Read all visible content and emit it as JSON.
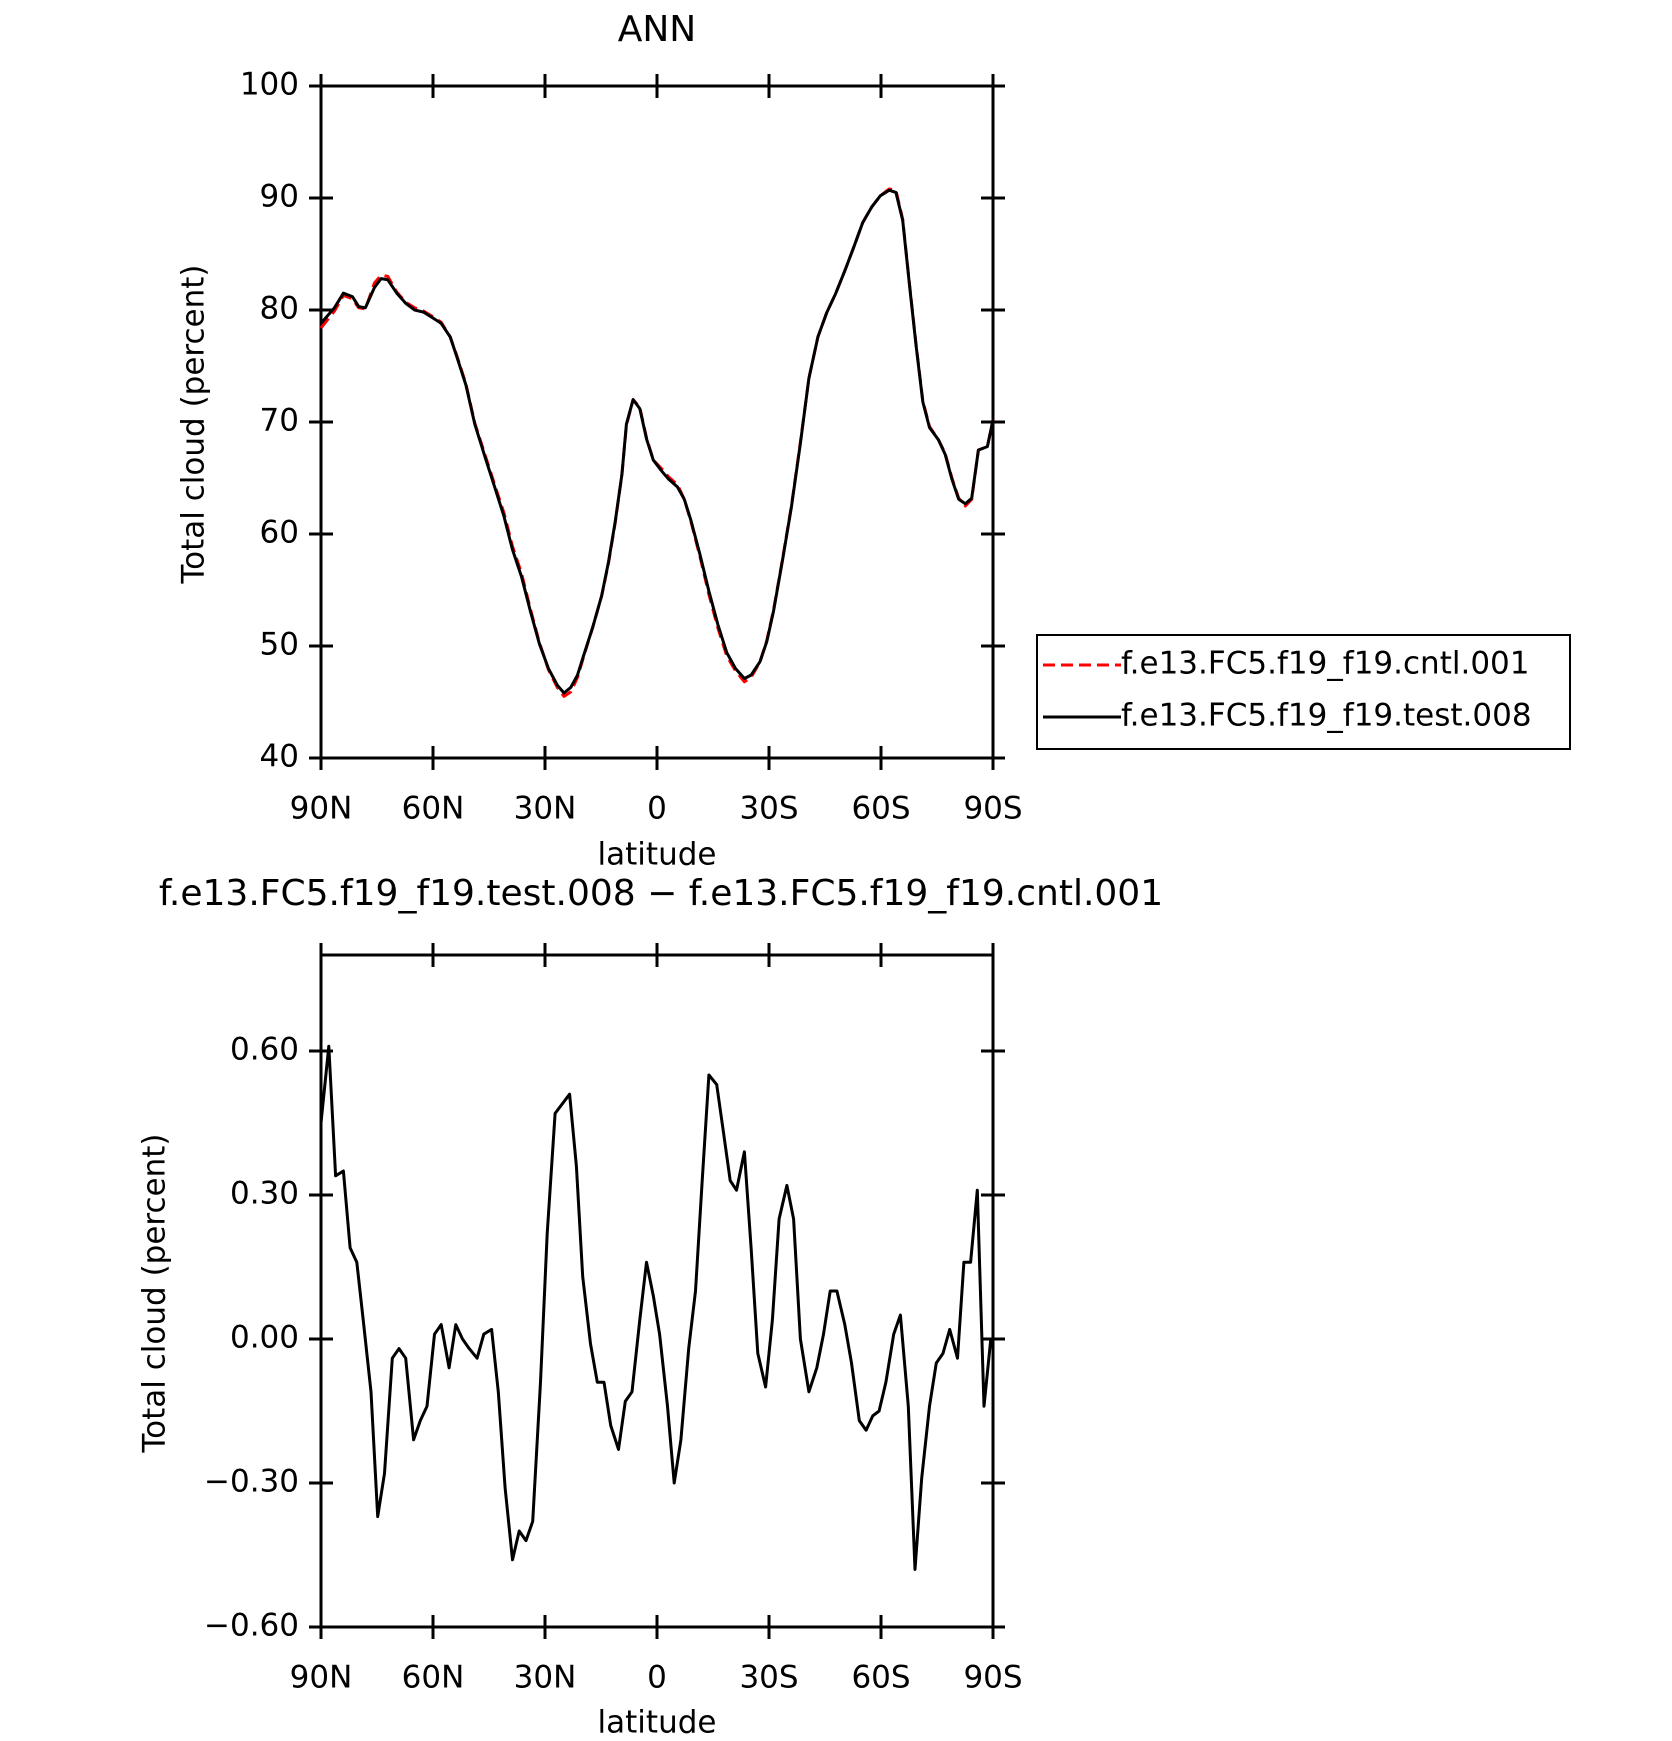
{
  "chart_data": [
    {
      "type": "line",
      "title": "ANN",
      "xlabel": "latitude",
      "ylabel": "Total cloud (percent)",
      "xlim": [
        90,
        -90
      ],
      "xticks": [
        {
          "value": 90,
          "label": "90N"
        },
        {
          "value": 60,
          "label": "60N"
        },
        {
          "value": 30,
          "label": "30N"
        },
        0,
        {
          "value": -30,
          "label": "30S"
        },
        {
          "value": -60,
          "label": "60S"
        },
        {
          "value": -90,
          "label": "90S"
        }
      ],
      "ylim": [
        40,
        100
      ],
      "yticks": [
        40,
        50,
        60,
        70,
        80,
        90,
        100
      ],
      "legend": "right",
      "x": [
        90,
        86.4,
        84.0,
        81.6,
        79.9,
        78.1,
        75.7,
        73.9,
        72.1,
        69.7,
        67.3,
        64.9,
        62.5,
        59.6,
        57.8,
        55.4,
        53.6,
        51.2,
        48.8,
        45.8,
        43.4,
        41.0,
        38.7,
        36.3,
        33.9,
        31.5,
        29.1,
        26.7,
        24.9,
        23.1,
        21.3,
        19.6,
        17.2,
        14.8,
        13.0,
        11.2,
        9.4,
        8.2,
        6.4,
        4.6,
        2.8,
        1.0,
        -1.3,
        -3.1,
        -5.5,
        -7.3,
        -9.1,
        -11.5,
        -13.9,
        -16.3,
        -18.7,
        -21.0,
        -23.4,
        -25.2,
        -27.6,
        -29.4,
        -31.2,
        -33.6,
        -36.0,
        -38.4,
        -40.7,
        -43.1,
        -45.5,
        -47.9,
        -50.3,
        -52.7,
        -55.1,
        -57.5,
        -59.8,
        -62.2,
        -64.0,
        -65.8,
        -67.6,
        -69.4,
        -71.2,
        -73.0,
        -75.4,
        -77.2,
        -79.0,
        -80.8,
        -82.6,
        -84.3,
        -86.1,
        -88.5,
        -90
      ],
      "series": [
        {
          "name": "f.e13.FC5.f19_f19.cntl.001",
          "color": "#ff0000",
          "dash": true,
          "values": [
            78.4,
            79.9,
            81.3,
            81.0,
            80.2,
            80.1,
            82.4,
            83.1,
            83.0,
            81.6,
            80.7,
            80.2,
            79.9,
            79.3,
            78.9,
            77.6,
            75.9,
            73.4,
            69.9,
            66.8,
            64.3,
            61.9,
            58.9,
            56.5,
            53.3,
            50.3,
            47.9,
            46.3,
            45.5,
            45.9,
            47.2,
            49.1,
            51.7,
            54.5,
            57.4,
            61.0,
            65.3,
            69.7,
            72.0,
            71.3,
            68.6,
            66.6,
            65.8,
            65.1,
            64.4,
            63.1,
            61.1,
            58.0,
            54.6,
            51.6,
            49.1,
            47.8,
            46.8,
            47.2,
            48.6,
            50.5,
            53.2,
            57.7,
            62.5,
            68.2,
            73.9,
            77.6,
            79.8,
            81.5,
            83.5,
            85.6,
            87.8,
            89.2,
            90.2,
            90.8,
            90.7,
            88.1,
            82.4,
            76.9,
            71.9,
            69.6,
            68.4,
            67.2,
            65.0,
            63.2,
            62.5,
            63.1,
            67.5,
            67.8,
            70.2
          ]
        },
        {
          "name": "f.e13.FC5.f19_f19.test.008",
          "color": "#000000",
          "dash": false,
          "values": [
            78.8,
            80.2,
            81.5,
            81.2,
            80.3,
            80.2,
            82.0,
            82.8,
            82.7,
            81.5,
            80.6,
            80.0,
            79.8,
            79.2,
            78.8,
            77.6,
            75.8,
            73.3,
            69.8,
            66.6,
            64.1,
            61.6,
            58.6,
            56.2,
            53.1,
            50.2,
            48.0,
            46.5,
            45.8,
            46.3,
            47.4,
            49.2,
            51.7,
            54.5,
            57.5,
            61.1,
            65.3,
            69.8,
            72.0,
            71.2,
            68.5,
            66.6,
            65.6,
            64.9,
            64.2,
            63.1,
            61.2,
            58.2,
            54.9,
            51.9,
            49.4,
            48.0,
            47.1,
            47.4,
            48.6,
            50.4,
            53.1,
            57.6,
            62.4,
            68.1,
            73.9,
            77.6,
            79.8,
            81.5,
            83.5,
            85.6,
            87.8,
            89.2,
            90.2,
            90.7,
            90.5,
            88.0,
            82.3,
            76.8,
            71.8,
            69.5,
            68.4,
            67.1,
            64.9,
            63.1,
            62.7,
            63.2,
            67.5,
            67.8,
            70.2
          ]
        }
      ]
    },
    {
      "type": "line",
      "title": "f.e13.FC5.f19_f19.test.008 − f.e13.FC5.f19_f19.cntl.001",
      "xlabel": "latitude",
      "ylabel": "Total cloud (percent)",
      "xlim": [
        90,
        -90
      ],
      "xticks": [
        {
          "value": 90,
          "label": "90N"
        },
        {
          "value": 60,
          "label": "60N"
        },
        {
          "value": 30,
          "label": "30N"
        },
        0,
        {
          "value": -30,
          "label": "30S"
        },
        {
          "value": -60,
          "label": "60S"
        },
        {
          "value": -90,
          "label": "90S"
        }
      ],
      "ylim": [
        -0.6,
        0.8
      ],
      "yticks": [
        {
          "value": -0.6,
          "label": "−0.60"
        },
        {
          "value": -0.3,
          "label": "−0.30"
        },
        {
          "value": 0,
          "label": "0.00"
        },
        {
          "value": 0.3,
          "label": "0.30"
        },
        {
          "value": 0.6,
          "label": "0.60"
        }
      ],
      "color": "#000000",
      "x": [
        90,
        87.9,
        86.1,
        84.0,
        82.2,
        80.4,
        78.7,
        76.6,
        74.8,
        73.0,
        70.9,
        69.1,
        67.3,
        65.2,
        63.4,
        61.6,
        59.6,
        57.8,
        55.7,
        53.9,
        52.1,
        50.3,
        48.2,
        46.4,
        44.3,
        42.5,
        40.7,
        38.7,
        36.9,
        35.1,
        33.3,
        31.2,
        29.4,
        27.3,
        23.4,
        21.6,
        19.9,
        17.8,
        16.0,
        14.2,
        12.4,
        10.3,
        8.5,
        6.7,
        4.6,
        2.8,
        1.0,
        -0.7,
        -2.8,
        -4.6,
        -6.4,
        -8.5,
        -10.3,
        -12.1,
        -13.9,
        -16.0,
        -17.8,
        -19.6,
        -21.3,
        -23.4,
        -25.2,
        -27.0,
        -29.1,
        -30.9,
        -32.7,
        -34.8,
        -36.6,
        -38.4,
        -40.7,
        -42.8,
        -44.6,
        -46.4,
        -48.2,
        -50.3,
        -52.1,
        -54.2,
        -56.0,
        -57.8,
        -59.5,
        -61.3,
        -63.4,
        -65.2,
        -67.3,
        -69.1,
        -70.9,
        -73.0,
        -74.8,
        -76.6,
        -78.4,
        -80.5,
        -82.2,
        -84.0,
        -85.8,
        -87.6,
        -89.4
      ],
      "values": [
        0.45,
        0.61,
        0.34,
        0.35,
        0.19,
        0.16,
        0.04,
        -0.11,
        -0.37,
        -0.28,
        -0.04,
        -0.02,
        -0.04,
        -0.21,
        -0.17,
        -0.14,
        0.01,
        0.03,
        -0.06,
        0.03,
        0.0,
        -0.02,
        -0.04,
        0.01,
        0.02,
        -0.11,
        -0.31,
        -0.46,
        -0.4,
        -0.42,
        -0.38,
        -0.09,
        0.22,
        0.47,
        0.51,
        0.36,
        0.13,
        -0.01,
        -0.09,
        -0.09,
        -0.18,
        -0.23,
        -0.13,
        -0.11,
        0.04,
        0.16,
        0.09,
        0.01,
        -0.14,
        -0.3,
        -0.21,
        -0.02,
        0.1,
        0.33,
        0.55,
        0.53,
        0.43,
        0.33,
        0.31,
        0.39,
        0.19,
        -0.03,
        -0.1,
        0.04,
        0.25,
        0.32,
        0.25,
        0.0,
        -0.11,
        -0.06,
        0.01,
        0.1,
        0.1,
        0.03,
        -0.05,
        -0.17,
        -0.19,
        -0.16,
        -0.15,
        -0.09,
        0.01,
        0.05,
        -0.14,
        -0.48,
        -0.29,
        -0.14,
        -0.05,
        -0.03,
        0.02,
        -0.04,
        0.16,
        0.16,
        0.31,
        -0.14,
        0.0
      ]
    }
  ]
}
